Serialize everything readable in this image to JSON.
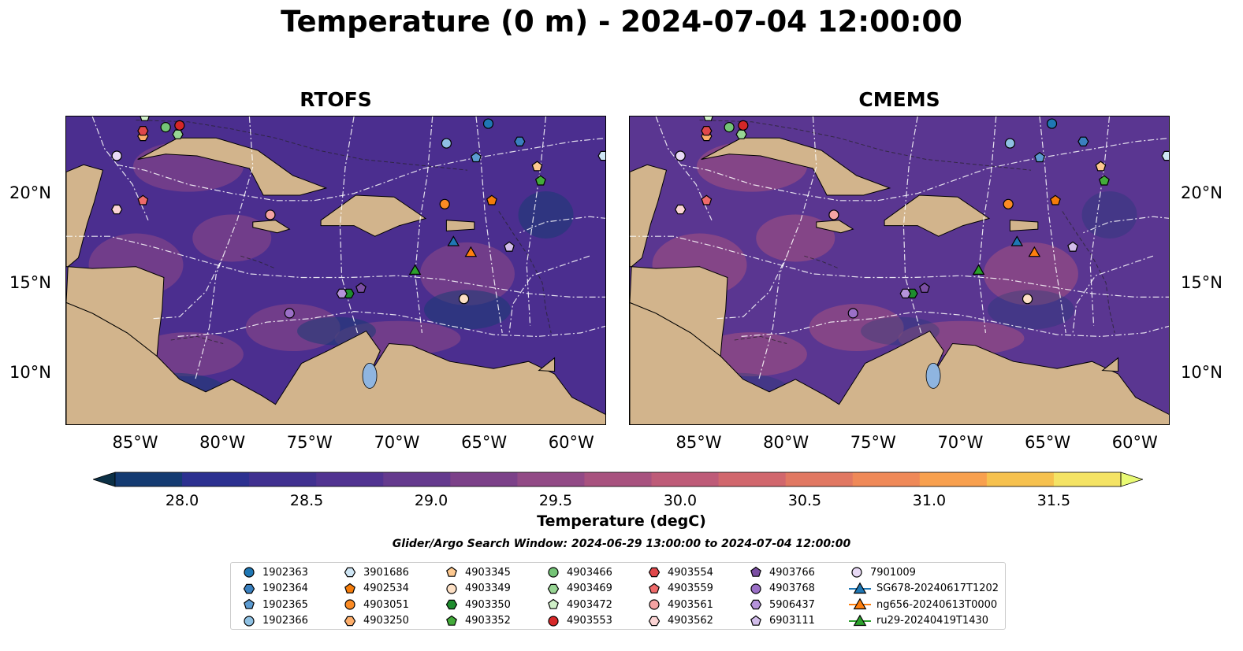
{
  "figure": {
    "title": "Temperature (0 m) - 2024-07-04 12:00:00",
    "search_window": "Glider/Argo Search Window: 2024-06-29 13:00:00 to 2024-07-04 12:00:00"
  },
  "panels": [
    {
      "title": "RTOFS"
    },
    {
      "title": "CMEMS"
    }
  ],
  "axes": {
    "x_ticks": [
      "85°W",
      "80°W",
      "75°W",
      "70°W",
      "65°W",
      "60°W"
    ],
    "y_ticks_left": [
      "20°N",
      "15°N",
      "10°N"
    ],
    "y_ticks_right": [
      "20°N",
      "15°N",
      "10°N"
    ]
  },
  "colorbar": {
    "label": "Temperature (degC)",
    "ticks": [
      "28.0",
      "28.5",
      "29.0",
      "29.5",
      "30.0",
      "30.5",
      "31.0",
      "31.5"
    ],
    "colors": [
      "#0c3046",
      "#143b72",
      "#2c3090",
      "#403090",
      "#513391",
      "#653a8e",
      "#7c4189",
      "#924a86",
      "#a8527f",
      "#be5b78",
      "#d1676d",
      "#e17862",
      "#ef8958",
      "#f8a04e",
      "#f6c14e",
      "#f4e364",
      "#e9fa74"
    ],
    "land_color": "#d2b48c"
  },
  "chart_data": {
    "type": "scatter",
    "title": "Temperature (0 m) - 2024-07-04 12:00:00",
    "panels": [
      "RTOFS",
      "CMEMS"
    ],
    "xlabel": "",
    "ylabel": "",
    "xlim": [
      -89,
      -58
    ],
    "ylim": [
      7,
      24.3
    ],
    "colorbar_range": [
      28.0,
      31.5
    ],
    "colorbar_label": "Temperature (degC)",
    "series": [
      {
        "name": "1902363",
        "marker": "circle",
        "color": "#1f77b4",
        "lon": -64.8,
        "lat": 23.9
      },
      {
        "name": "1902364",
        "marker": "hexagon",
        "color": "#3a80bf",
        "lon": -63.0,
        "lat": 22.9
      },
      {
        "name": "1902365",
        "marker": "pentagon",
        "color": "#5c9bd1",
        "lon": -65.5,
        "lat": 22.0
      },
      {
        "name": "1902366",
        "marker": "circle",
        "color": "#8fc1e3",
        "lon": -67.2,
        "lat": 22.8
      },
      {
        "name": "3901686",
        "marker": "hexagon",
        "color": "#cfe6f5",
        "lon": -58.2,
        "lat": 22.1
      },
      {
        "name": "4902534",
        "marker": "pentagon",
        "color": "#f57c0a",
        "lon": -64.6,
        "lat": 19.6
      },
      {
        "name": "4903051",
        "marker": "circle",
        "color": "#fb8b24",
        "lon": -67.3,
        "lat": 19.4
      },
      {
        "name": "4903250",
        "marker": "hexagon",
        "color": "#fdae6b",
        "lon": -84.6,
        "lat": 23.2
      },
      {
        "name": "4903345",
        "marker": "pentagon",
        "color": "#fdc88f",
        "lon": -62.0,
        "lat": 21.5
      },
      {
        "name": "4903349",
        "marker": "circle",
        "color": "#fde0c5",
        "lon": -66.2,
        "lat": 14.1
      },
      {
        "name": "4903350",
        "marker": "hexagon",
        "color": "#1e8c2e",
        "lon": -72.8,
        "lat": 14.4
      },
      {
        "name": "4903352",
        "marker": "pentagon",
        "color": "#43ab3a",
        "lon": -61.8,
        "lat": 20.7
      },
      {
        "name": "4903466",
        "marker": "circle",
        "color": "#74c476",
        "lon": -83.3,
        "lat": 23.7
      },
      {
        "name": "4903469",
        "marker": "hexagon",
        "color": "#98d594",
        "lon": -82.6,
        "lat": 23.3
      },
      {
        "name": "4903472",
        "marker": "pentagon",
        "color": "#d0f0c8",
        "lon": -84.5,
        "lat": 24.3
      },
      {
        "name": "4903553",
        "marker": "circle",
        "color": "#d62728",
        "lon": -82.5,
        "lat": 23.8
      },
      {
        "name": "4903554",
        "marker": "hexagon",
        "color": "#e0474a",
        "lon": -84.6,
        "lat": 23.5
      },
      {
        "name": "4903559",
        "marker": "pentagon",
        "color": "#ef6a6a",
        "lon": -84.6,
        "lat": 19.6
      },
      {
        "name": "4903561",
        "marker": "circle",
        "color": "#f5a3a3",
        "lon": -77.3,
        "lat": 18.8
      },
      {
        "name": "4903562",
        "marker": "hexagon",
        "color": "#fbd4d4",
        "lon": -86.1,
        "lat": 19.1
      },
      {
        "name": "4903766",
        "marker": "pentagon",
        "color": "#7b4ea3",
        "lon": -72.1,
        "lat": 14.7
      },
      {
        "name": "4903768",
        "marker": "circle",
        "color": "#9b70c7",
        "lon": -76.2,
        "lat": 13.3
      },
      {
        "name": "5906437",
        "marker": "hexagon",
        "color": "#b593da",
        "lon": -73.2,
        "lat": 14.4
      },
      {
        "name": "6903111",
        "marker": "pentagon",
        "color": "#d2bdea",
        "lon": -63.6,
        "lat": 17.0
      },
      {
        "name": "7901009",
        "marker": "circle",
        "color": "#e8d9f5",
        "lon": -86.1,
        "lat": 22.1
      },
      {
        "name": "SG678-20240617T1202",
        "marker": "triangle",
        "color": "#1f77b4",
        "lon": -66.8,
        "lat": 17.3
      },
      {
        "name": "ng656-20240613T0000",
        "marker": "triangle",
        "color": "#ff7f0e",
        "lon": -65.8,
        "lat": 16.7
      },
      {
        "name": "ru29-20240419T1430",
        "marker": "triangle",
        "color": "#2ca02c",
        "lon": -69.0,
        "lat": 15.7
      }
    ]
  }
}
